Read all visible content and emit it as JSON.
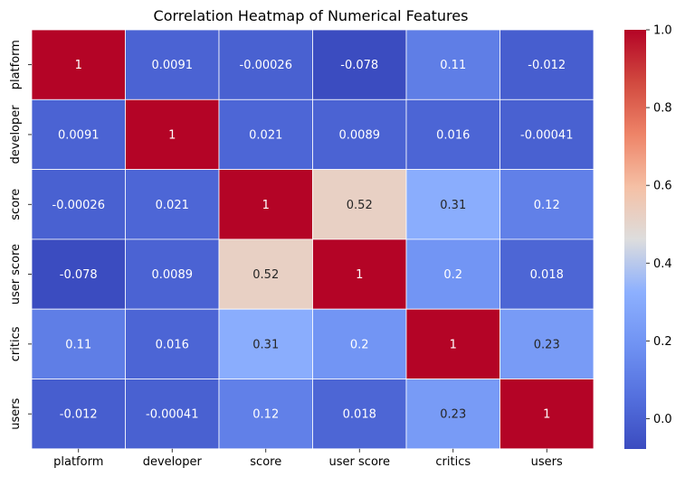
{
  "chart_data": {
    "type": "heatmap",
    "title": "Correlation Heatmap of Numerical Features",
    "x_labels": [
      "platform",
      "developer",
      "score",
      "user score",
      "critics",
      "users"
    ],
    "y_labels": [
      "platform",
      "developer",
      "score",
      "user score",
      "critics",
      "users"
    ],
    "cell_labels": [
      [
        "1",
        "0.0091",
        "-0.00026",
        "-0.078",
        "0.11",
        "-0.012"
      ],
      [
        "0.0091",
        "1",
        "0.021",
        "0.0089",
        "0.016",
        "-0.00041"
      ],
      [
        "-0.00026",
        "0.021",
        "1",
        "0.52",
        "0.31",
        "0.12"
      ],
      [
        "-0.078",
        "0.0089",
        "0.52",
        "1",
        "0.2",
        "0.018"
      ],
      [
        "0.11",
        "0.016",
        "0.31",
        "0.2",
        "1",
        "0.23"
      ],
      [
        "-0.012",
        "-0.00041",
        "0.12",
        "0.018",
        "0.23",
        "1"
      ]
    ],
    "values": [
      [
        1,
        0.0091,
        -0.00026,
        -0.078,
        0.11,
        -0.012
      ],
      [
        0.0091,
        1,
        0.021,
        0.0089,
        0.016,
        -0.00041
      ],
      [
        -0.00026,
        0.021,
        1,
        0.52,
        0.31,
        0.12
      ],
      [
        -0.078,
        0.0089,
        0.52,
        1,
        0.2,
        0.018
      ],
      [
        0.11,
        0.016,
        0.31,
        0.2,
        1,
        0.23
      ],
      [
        -0.012,
        -0.00041,
        0.12,
        0.018,
        0.23,
        1
      ]
    ],
    "colormap": "coolwarm",
    "vmin": -0.078,
    "vmax": 1,
    "colorbar_ticks": [
      0.0,
      0.2,
      0.4,
      0.6,
      0.8,
      1.0
    ],
    "colorbar_tick_labels": [
      "0.0",
      "0.2",
      "0.4",
      "0.6",
      "0.8",
      "1.0"
    ],
    "colormap_stops": [
      {
        "v": 0.0,
        "color": "#3b4cc0"
      },
      {
        "v": 0.125,
        "color": "#5470de"
      },
      {
        "v": 0.25,
        "color": "#7093f3"
      },
      {
        "v": 0.375,
        "color": "#8db0fe"
      },
      {
        "v": 0.5,
        "color": "#dddddd"
      },
      {
        "v": 0.625,
        "color": "#f5c0a5"
      },
      {
        "v": 0.75,
        "color": "#ee8468"
      },
      {
        "v": 0.875,
        "color": "#d1493f"
      },
      {
        "v": 1.0,
        "color": "#b40426"
      }
    ]
  }
}
